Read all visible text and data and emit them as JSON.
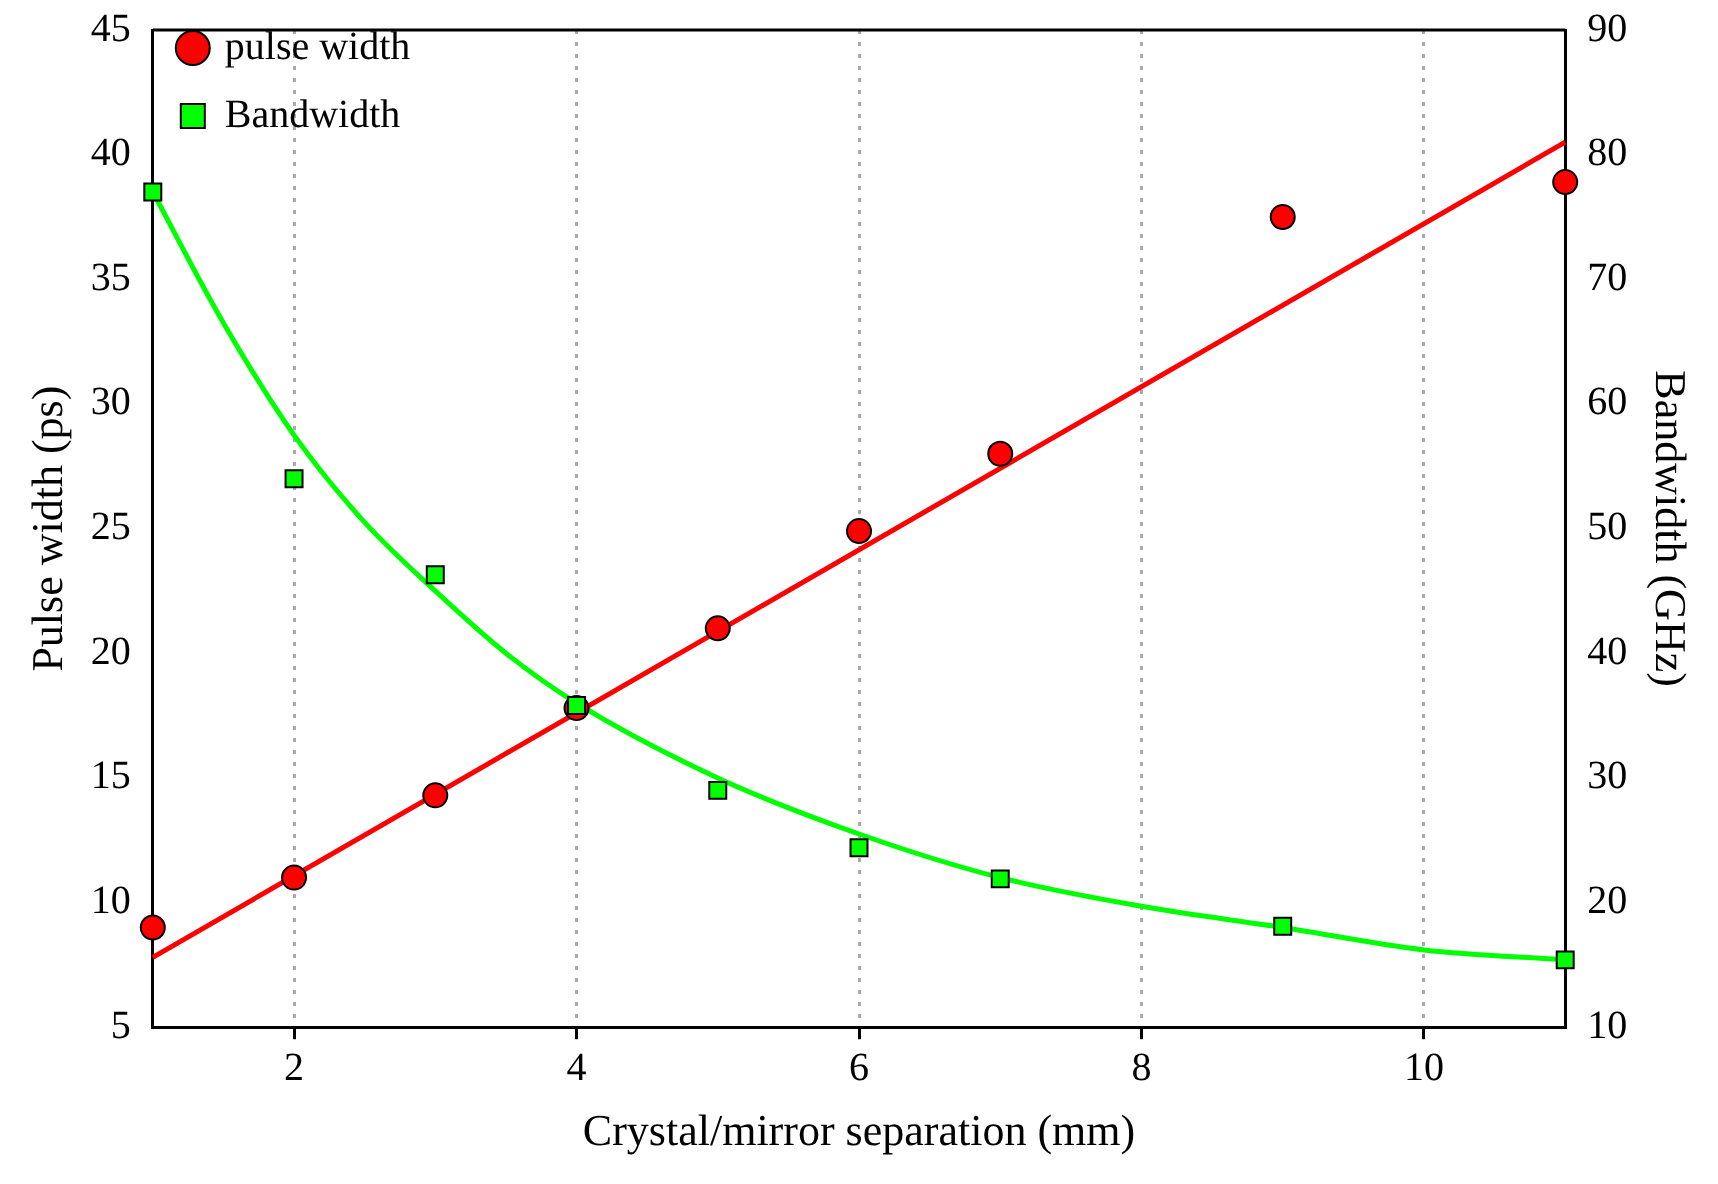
{
  "chart_data": {
    "type": "scatter",
    "xlabel": "Crystal/mirror separation (mm)",
    "ylabel": "Pulse width (ps)",
    "y2label": "Bandwidth (GHz)",
    "xlim": [
      1,
      11
    ],
    "xticks": [
      2,
      4,
      6,
      8,
      10
    ],
    "ylim": [
      5,
      45
    ],
    "yticks": [
      5,
      10,
      15,
      20,
      25,
      30,
      35,
      40,
      45
    ],
    "y2lim": [
      10,
      90
    ],
    "y2ticks": [
      10,
      20,
      30,
      40,
      50,
      60,
      70,
      80,
      90
    ],
    "grid": "x",
    "legend": "top left",
    "series": [
      {
        "name": "pulse width",
        "color": "#ff0000",
        "marker": "circle",
        "x": [
          1,
          2,
          3,
          4,
          5,
          6,
          7,
          9,
          11
        ],
        "values": [
          9,
          11,
          14.3,
          17.8,
          21,
          24.9,
          28,
          37.5,
          38.9
        ]
      },
      {
        "name": "Bandwidth",
        "color": "#00ff00",
        "marker": "square",
        "axis": "y2",
        "x": [
          1,
          2,
          3,
          4,
          5,
          6,
          7,
          9,
          11
        ],
        "values": [
          77,
          54,
          46.3,
          35.8,
          29,
          24.4,
          21.9,
          18.1,
          15.4
        ]
      },
      {
        "type": "line",
        "color": "#ff0000",
        "marker": "none",
        "x": [
          1,
          11
        ],
        "values": [
          7.8,
          40.5
        ]
      },
      {
        "type": "line",
        "color": "#00ff00",
        "marker": "none",
        "axis": "y2",
        "x": [
          1,
          1.5,
          2,
          2.5,
          3,
          3.5,
          4,
          5,
          6,
          7,
          8,
          9,
          10,
          11
        ],
        "values": [
          77,
          66.5,
          57.5,
          50.5,
          45,
          40,
          36,
          30,
          25.5,
          22,
          19.7,
          18,
          16.2,
          15.4
        ]
      }
    ]
  }
}
